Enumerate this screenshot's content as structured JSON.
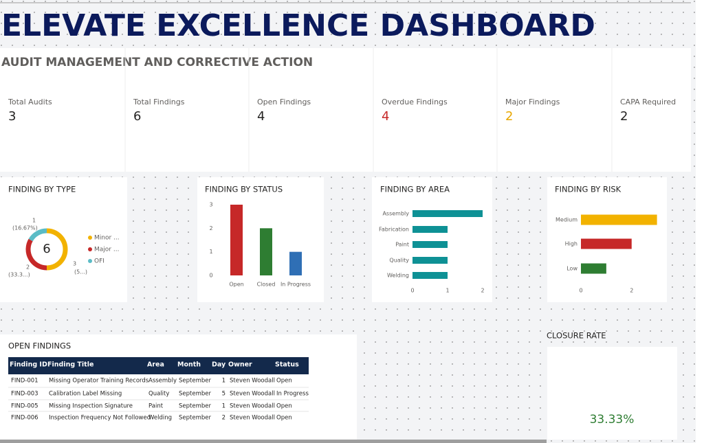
{
  "header": {
    "title": "ELEVATE EXCELLENCE DASHBOARD",
    "subtitle": "AUDIT MANAGEMENT AND CORRECTIVE ACTION"
  },
  "kpis": [
    {
      "label": "Total Audits",
      "value": 3,
      "color": "#252423"
    },
    {
      "label": "Total Findings",
      "value": 6,
      "color": "#252423"
    },
    {
      "label": "Open Findings",
      "value": 4,
      "color": "#252423"
    },
    {
      "label": "Overdue Findings",
      "value": 4,
      "color": "#c62828"
    },
    {
      "label": "Major Findings",
      "value": 2,
      "color": "#e8a700"
    },
    {
      "label": "CAPA Required",
      "value": 2,
      "color": "#252423"
    }
  ],
  "chart_data": [
    {
      "type": "donut",
      "title": "FINDING BY TYPE",
      "categories": [
        "Minor ...",
        "Major ...",
        "OFI"
      ],
      "values": [
        3,
        2,
        1
      ],
      "percent_labels": [
        "(5...)",
        "(33.3...)",
        "(16.67%)"
      ],
      "center_label": 6,
      "colors": [
        "#f2b200",
        "#c62828",
        "#5bbcc6"
      ],
      "legend": "right"
    },
    {
      "type": "bar",
      "title": "FINDING BY STATUS",
      "categories": [
        "Open",
        "Closed",
        "In Progress"
      ],
      "values": [
        3,
        2,
        1
      ],
      "colors": [
        "#c62828",
        "#2e7d32",
        "#2f6fb5"
      ],
      "ylim": [
        0,
        3
      ],
      "yticks": [
        0,
        1,
        2,
        3
      ]
    },
    {
      "type": "hbar",
      "title": "FINDING BY AREA",
      "categories": [
        "Assembly",
        "Fabrication",
        "Paint",
        "Quality",
        "Welding"
      ],
      "values": [
        2,
        1,
        1,
        1,
        1
      ],
      "colors": [
        "#0e9195",
        "#0e9195",
        "#0e9195",
        "#0e9195",
        "#0e9195"
      ],
      "xlim": [
        0,
        2
      ],
      "xticks": [
        0,
        1,
        2
      ]
    },
    {
      "type": "hbar",
      "title": "FINDING BY RISK",
      "categories": [
        "Medium",
        "High",
        "Low"
      ],
      "values": [
        3,
        2,
        1
      ],
      "colors": [
        "#f2b200",
        "#c62828",
        "#2e7d32"
      ],
      "xlim": [
        0,
        3.2
      ],
      "xticks": [
        0,
        2
      ]
    }
  ],
  "table": {
    "title": "OPEN FINDINGS",
    "columns": [
      "Finding ID",
      "Finding Title",
      "Area",
      "Month",
      "Day",
      "Owner",
      "Status"
    ],
    "rows": [
      [
        "FIND-001",
        "Missing Operator Training Records",
        "Assembly",
        "September",
        "1",
        "Steven Woodall",
        "Open"
      ],
      [
        "FIND-003",
        "Calibration Label Missing",
        "Quality",
        "September",
        "5",
        "Steven Woodall",
        "In Progress"
      ],
      [
        "FIND-005",
        "Missing Inspection Signature",
        "Paint",
        "September",
        "1",
        "Steven Woodall",
        "Open"
      ],
      [
        "FIND-006",
        "Inspection Frequency Not Followed",
        "Welding",
        "September",
        "2",
        "Steven Woodall",
        "Open"
      ]
    ]
  },
  "closure_rate": {
    "title": "CLOSURE RATE",
    "value": "33.33%"
  }
}
